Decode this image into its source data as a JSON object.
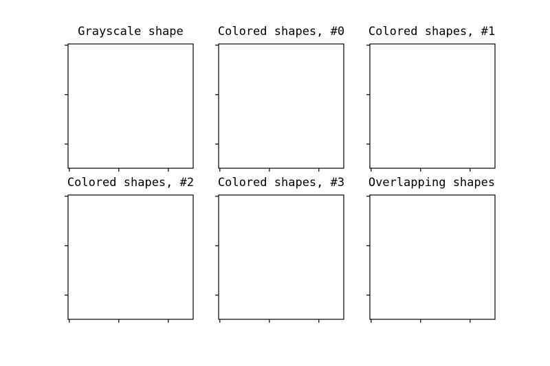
{
  "panels": [
    {
      "title": "Grayscale shape"
    },
    {
      "title": "Colored shapes, #0"
    },
    {
      "title": "Colored shapes, #1"
    },
    {
      "title": "Colored shapes, #2"
    },
    {
      "title": "Colored shapes, #3"
    },
    {
      "title": "Overlapping shapes"
    }
  ]
}
